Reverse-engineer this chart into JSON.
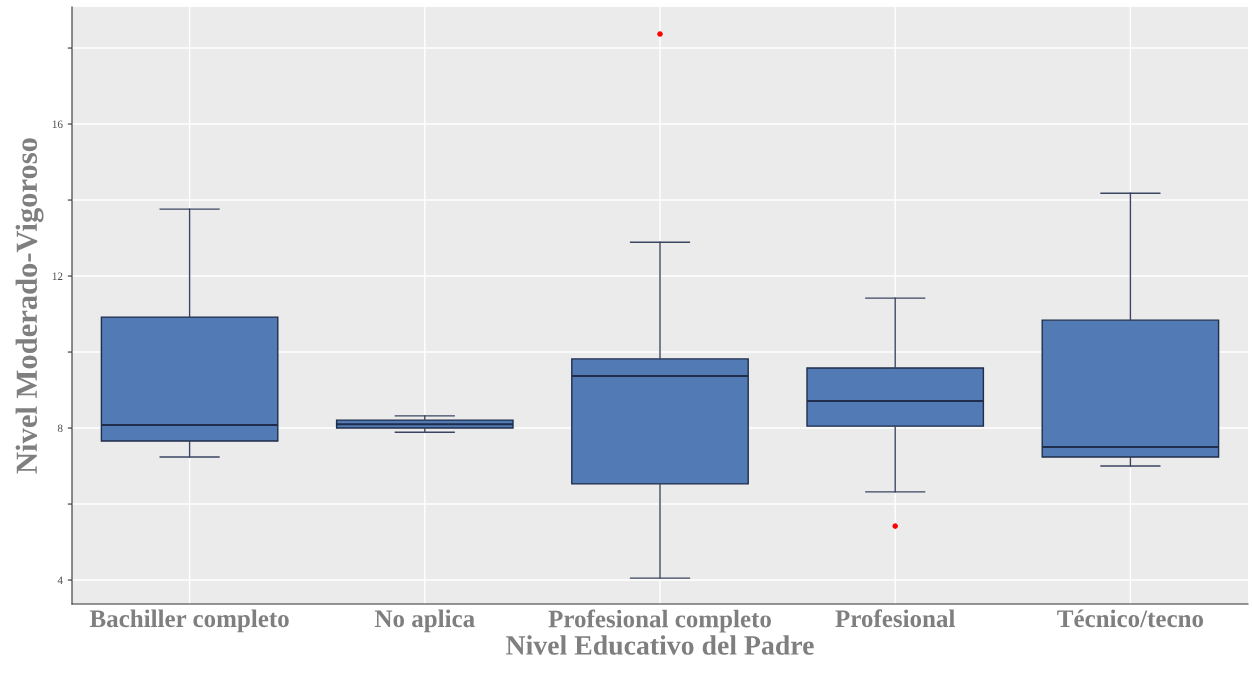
{
  "chart_data": {
    "type": "box",
    "xlabel": "Nivel Educativo del Padre",
    "ylabel": "Nivel Moderado-Vigoroso",
    "categories": [
      "Bachiller completo",
      "No aplica",
      "Profesional completo",
      "Profesional",
      "Técnico/tecno"
    ],
    "color": "#527bb5",
    "grid": true,
    "ylim": [
      3.37,
      19.08
    ],
    "yticks": [
      4,
      {
        "value": 6,
        "label": null
      },
      8,
      {
        "value": 10,
        "label": null
      },
      12,
      {
        "value": 14,
        "label": null
      },
      16,
      {
        "value": 18,
        "label": null
      }
    ],
    "boxes": [
      {
        "low": 7.24,
        "q1": 7.66,
        "median": 8.08,
        "q3": 10.92,
        "high": 13.76
      },
      {
        "low": 7.89,
        "q1": 8.0,
        "median": 8.1,
        "q3": 8.21,
        "high": 8.32
      },
      {
        "low": 4.05,
        "q1": 6.53,
        "median": 9.37,
        "q3": 9.82,
        "high": 12.89,
        "outliers": [
          18.37
        ]
      },
      {
        "low": 6.32,
        "q1": 8.05,
        "median": 8.71,
        "q3": 9.58,
        "high": 11.42,
        "outliers": [
          5.42
        ]
      },
      {
        "low": 7.0,
        "q1": 7.24,
        "median": 7.5,
        "q3": 10.84,
        "high": 14.18
      }
    ]
  }
}
